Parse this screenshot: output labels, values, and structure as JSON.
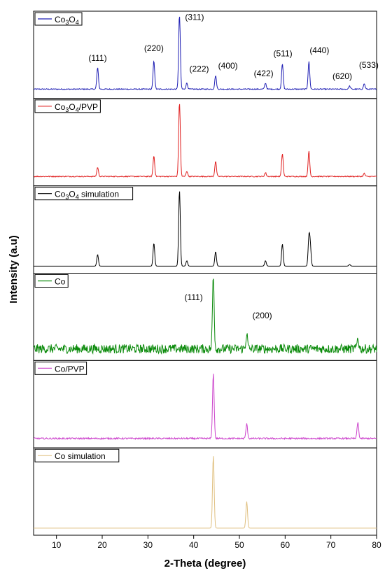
{
  "chart_data": {
    "type": "line",
    "xlabel": "2-Theta (degree)",
    "ylabel": "Intensity (a.u)",
    "xlim": [
      5,
      80
    ],
    "x_ticks": [
      10,
      20,
      30,
      40,
      50,
      60,
      70,
      80
    ],
    "panels": [
      {
        "legend": "Co3O4",
        "legend_sub": "3|4",
        "color": "#1f1fb4",
        "noise": 0.013,
        "baseline": 0.05,
        "peaks": [
          [
            19.0,
            0.28
          ],
          [
            31.3,
            0.37
          ],
          [
            36.9,
            1.0
          ],
          [
            38.5,
            0.08
          ],
          [
            44.8,
            0.18
          ],
          [
            55.7,
            0.08
          ],
          [
            59.4,
            0.33
          ],
          [
            65.2,
            0.36
          ],
          [
            74.1,
            0.04
          ],
          [
            77.3,
            0.07
          ]
        ],
        "annotations": [
          {
            "text": "(111)",
            "x": 19.0,
            "y": 0.42
          },
          {
            "text": "(220)",
            "x": 31.3,
            "y": 0.55
          },
          {
            "text": "(311)",
            "x": 40.2,
            "y": 0.96
          },
          {
            "text": "(222)",
            "x": 41.2,
            "y": 0.28
          },
          {
            "text": "(400)",
            "x": 47.5,
            "y": 0.32
          },
          {
            "text": "(422)",
            "x": 55.3,
            "y": 0.22
          },
          {
            "text": "(511)",
            "x": 59.5,
            "y": 0.48
          },
          {
            "text": "(440)",
            "x": 67.5,
            "y": 0.52
          },
          {
            "text": "(620)",
            "x": 72.5,
            "y": 0.18
          },
          {
            "text": "(533)",
            "x": 78.3,
            "y": 0.33
          }
        ]
      },
      {
        "legend": "Co3O4/PVP",
        "legend_sub": "3|4",
        "color": "#e02020",
        "noise": 0.013,
        "baseline": 0.05,
        "peaks": [
          [
            19.0,
            0.12
          ],
          [
            31.3,
            0.27
          ],
          [
            36.9,
            1.0
          ],
          [
            38.5,
            0.07
          ],
          [
            44.8,
            0.2
          ],
          [
            55.7,
            0.05
          ],
          [
            59.4,
            0.3
          ],
          [
            65.2,
            0.33
          ],
          [
            77.3,
            0.04
          ]
        ],
        "annotations": []
      },
      {
        "legend": "Co3O4 simulation",
        "legend_sub": "3|4",
        "color": "#000000",
        "noise": 0,
        "baseline": 0.02,
        "peaks": [
          [
            19.0,
            0.15
          ],
          [
            31.3,
            0.3
          ],
          [
            36.9,
            1.0
          ],
          [
            38.5,
            0.07
          ],
          [
            44.8,
            0.19
          ],
          [
            55.7,
            0.07
          ],
          [
            59.4,
            0.29
          ],
          [
            65.2,
            0.36
          ],
          [
            65.5,
            0.25
          ],
          [
            74.1,
            0.02
          ]
        ],
        "annotations": []
      },
      {
        "legend": "Co",
        "legend_sub": "",
        "color": "#0a8a0a",
        "noise": 0.12,
        "baseline": 0.08,
        "peaks": [
          [
            44.3,
            1.0
          ],
          [
            51.6,
            0.2
          ],
          [
            75.9,
            0.15
          ]
        ],
        "annotations": [
          {
            "text": "(111)",
            "x": 40.0,
            "y": 0.72
          },
          {
            "text": "(200)",
            "x": 55.0,
            "y": 0.48
          }
        ]
      },
      {
        "legend": "Co/PVP",
        "legend_sub": "",
        "color": "#cc44cc",
        "noise": 0.02,
        "baseline": 0.05,
        "peaks": [
          [
            44.3,
            0.85
          ],
          [
            51.6,
            0.19
          ],
          [
            75.9,
            0.21
          ]
        ],
        "annotations": []
      },
      {
        "legend": "Co simulation",
        "legend_sub": "",
        "color": "#e0c080",
        "noise": 0,
        "baseline": 0.02,
        "peaks": [
          [
            44.3,
            0.95
          ],
          [
            51.6,
            0.35
          ]
        ],
        "annotations": []
      }
    ]
  }
}
